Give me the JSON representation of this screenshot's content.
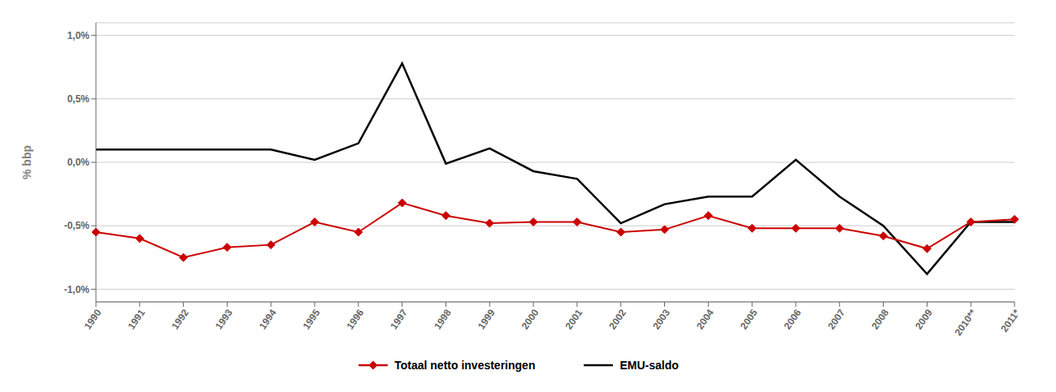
{
  "chart_data": {
    "type": "line",
    "y_label": "% bbp",
    "categories": [
      "1990",
      "1991",
      "1992",
      "1993",
      "1994",
      "1995",
      "1996",
      "1997",
      "1998",
      "1999",
      "2000",
      "2001",
      "2002",
      "2003",
      "2004",
      "2005",
      "2006",
      "2007",
      "2008",
      "2009",
      "2010**",
      "2011*"
    ],
    "series": [
      {
        "name": "Totaal netto investeringen",
        "color": "#cc0000",
        "marker": "diamond",
        "values": [
          -0.55,
          -0.6,
          -0.75,
          -0.67,
          -0.65,
          -0.47,
          -0.55,
          -0.32,
          -0.42,
          -0.48,
          -0.47,
          -0.47,
          -0.55,
          -0.53,
          -0.42,
          -0.52,
          -0.52,
          -0.52,
          -0.58,
          -0.68,
          -0.47,
          -0.45
        ]
      },
      {
        "name": "EMU-saldo",
        "color": "#000000",
        "marker": "none",
        "values": [
          0.1,
          0.1,
          0.1,
          0.1,
          0.1,
          0.02,
          0.15,
          0.78,
          -0.01,
          0.11,
          -0.07,
          -0.13,
          -0.48,
          -0.33,
          -0.27,
          -0.27,
          0.02,
          -0.27,
          -0.5,
          -0.88,
          -0.47,
          -0.47
        ]
      }
    ],
    "ylim": [
      -1.1,
      1.1
    ],
    "yticks": [
      {
        "value": -1.0,
        "label": "-1,0%"
      },
      {
        "value": -0.5,
        "label": "-0,5%"
      },
      {
        "value": 0.0,
        "label": "0,0%"
      },
      {
        "value": 0.5,
        "label": "0,5%"
      },
      {
        "value": 1.0,
        "label": "1,0%"
      }
    ],
    "grid": true,
    "legend": "bottom"
  }
}
